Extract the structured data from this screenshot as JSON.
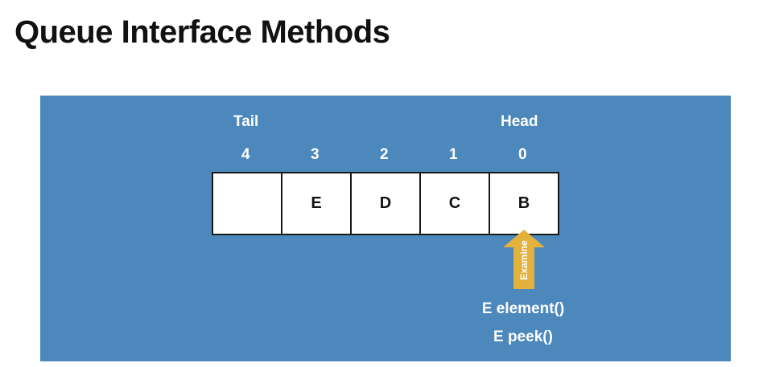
{
  "title": "Queue Interface Methods",
  "diagram": {
    "tail_label": "Tail",
    "head_label": "Head",
    "indices": [
      "4",
      "3",
      "2",
      "1",
      "0"
    ],
    "cells": [
      "",
      "E",
      "D",
      "C",
      "B"
    ],
    "arrow_label": "Examine",
    "methods": [
      "E element()",
      "E peek()"
    ],
    "colors": {
      "panel": "#4d88bd",
      "arrow": "#e3b23c",
      "text": "#ffffff"
    }
  }
}
